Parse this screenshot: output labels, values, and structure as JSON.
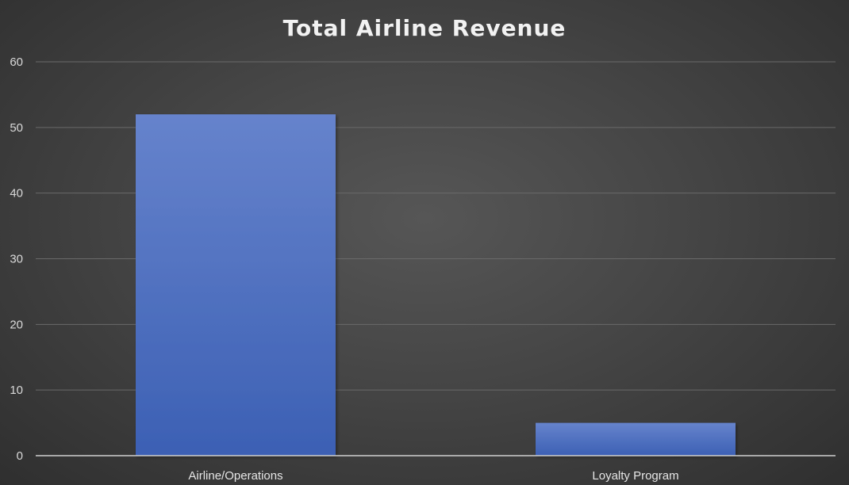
{
  "chart_data": {
    "type": "bar",
    "title": "Total Airline Revenue",
    "categories": [
      "Airline/Operations",
      "Loyalty Program"
    ],
    "values": [
      52,
      5
    ],
    "ylim": [
      0,
      60
    ],
    "yticks": [
      0,
      10,
      20,
      30,
      40,
      50,
      60
    ],
    "grid": true,
    "legend": "none",
    "bar_color_top": "#6683cc",
    "bar_color_bottom": "#3c60b4",
    "gridline_color": "#6a6a6a",
    "axis_color": "#cfcfcf"
  }
}
